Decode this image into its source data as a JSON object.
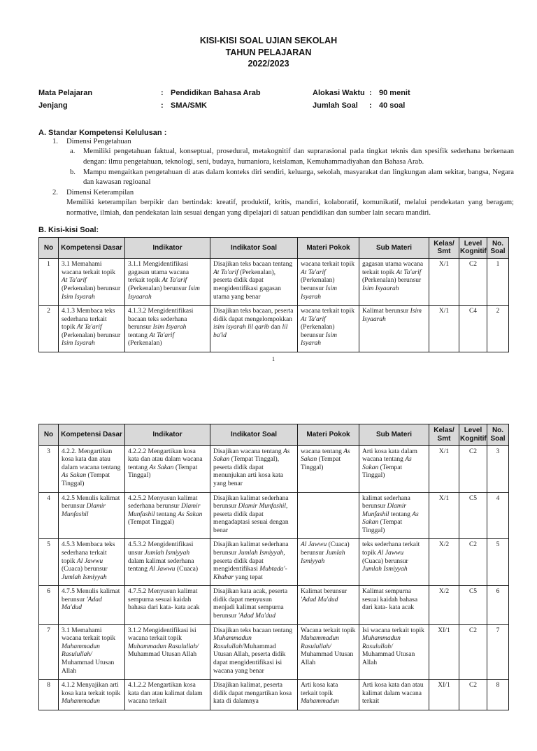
{
  "header": {
    "title_lines": [
      "KISI-KISI SOAL UJIAN SEKOLAH",
      "TAHUN PELAJARAN",
      "2022/2023"
    ]
  },
  "meta": {
    "left": [
      {
        "label": "Mata Pelajaran",
        "colon": ":",
        "value": "Pendidikan Bahasa Arab"
      },
      {
        "label": "Jenjang",
        "colon": ":",
        "value": "SMA/SMK"
      }
    ],
    "right": [
      {
        "label": "Alokasi Waktu",
        "colon": ":",
        "value": "90 menit"
      },
      {
        "label": "Jumlah Soal",
        "colon": ":",
        "value": "40 soal"
      }
    ]
  },
  "section_a": {
    "heading": "A. Standar Kompetensi Kelulusan  :",
    "items": [
      {
        "marker": "1.",
        "level": 1,
        "text": "Dimensi Pengetahuan"
      },
      {
        "marker": "a.",
        "level": 2,
        "text": "Memiliki pengetahuan faktual, konseptual, prosedural, metakognitif dan suprarasional pada tingkat teknis dan spesifik sederhana berkenaan dengan: ilmu pengetahuan, teknologi, seni, budaya, humaniora, keislaman, Kemuhammadiyahan dan Bahasa Arab."
      },
      {
        "marker": "b.",
        "level": 2,
        "text": "Mampu mengaitkan pengetahuan di atas dalam konteks diri sendiri, keluarga, sekolah, masyarakat dan lingkungan alam sekitar, bangsa, Negara dan kawasan regioanal"
      },
      {
        "marker": "2.",
        "level": 1,
        "text": "Dimensi Keterampilan"
      },
      {
        "marker": "",
        "level": 3,
        "text": "Memiliki keterampilan berpikir dan bertindak: kreatif, produktif, kritis, mandiri, kolaboratif, komunikatif, melalui pendekatan yang beragam; normative, ilmiah, dan pendekatan lain sesuai dengan yang dipelajari di satuan pendidikan dan sumber lain secara mandiri."
      }
    ]
  },
  "section_b_heading": "B. Kisi-kisi Soal:",
  "table_headers": [
    "No",
    "Kompetensi Dasar",
    "Indikator",
    "Indikator Soal",
    "Materi Pokok",
    "Sub Materi",
    "Kelas/\nSmt",
    "Level\nKognitif",
    "No.\nSoal"
  ],
  "tables": {
    "page1": [
      [
        "1",
        "3.1 Memahami wacana terkait topik *At Ta'arif* (Perkenalan) berunsur *Isim Isyarah*",
        "3.1.1 Mengidentifikasi gagasan utama wacana terkait topik *At Ta'arif* (Perkenalan) berunsur *Isim Isyaarah*",
        "Disajikan teks bacaan tentang *At Ta'arif* (Perkenalan), peserta didik dapat mengidentifikasi gagasan utama yang benar",
        "wacana terkait topik *At Ta'arif* (Perkenalan) berunsur *Isim Isyarah*",
        "gagasan utama wacana terkait topik *At Ta'arif* (Perkenalan) berunsur *Isim Isyaarah*",
        "X/1",
        "C2",
        "1"
      ],
      [
        "2",
        "4.1.3 Membaca teks sederhana terkait topik *At Ta'arif* (Perkenalan) berunsur *Isim Isyarah*",
        "4.1.3.2 Mengidentifikasi bacaan teks sederhana berunsur *Isim Isyarah* tentang *At Ta'arif* (Perkenalan)",
        "Disajikan teks bacaan, peserta didik dapat mengelompokkan *isim isyarah lil qarib* dan *lil ba'id*",
        "wacana terkait topik *At Ta'arif* (Perkenalan) berunsur *Isim Isyarah*",
        "Kalimat berunsur *Isim Isyaarah*",
        "X/1",
        "C4",
        "2"
      ]
    ],
    "page2": [
      [
        "3",
        "4.2.2. Mengartikan kosa kata dan atau dalam wacana tentang *As Sakan* (Tempat Tinggal)",
        "4.2.2.2 Mengartikan kosa kata dan atau dalam wacana tentang *As Sakan* (Tempat Tinggal)",
        "Disajikan wacana tentang *As Sakan* (Tempat Tinggal), peserta didik dapat menunjukan arti kosa kata yang benar",
        "wacana tentang *As Sakan* (Tempat Tinggal)",
        "Arti kosa kata dalam wacana tentang *As Sakan* (Tempat Tinggal)",
        "X/1",
        "C2",
        "3"
      ],
      [
        "4",
        "4.2.5 Menulis kalimat berunsur *Dlamir Munfashil*",
        "4.2.5.2 Menyusun kalimat sederhana berunsur *Dlamir Munfashil* tentang *As Sakan* (Tempat Tinggal)",
        "Disajikan kalimat sederhana berunsur *Dlamir Munfashil*, peserta didik dapat mengadaptasi sesuai dengan benar",
        "",
        "kalimat sederhana berunsur *Dlamir Munfashil* tentang *As Sakan* (Tempat Tinggal)",
        "X/1",
        "C5",
        "4"
      ],
      [
        "5",
        "4.5.3 Membaca teks sederhana terkait topik *Al Jawwu* (Cuaca) berunsur *Jumlah Ismiyyah*",
        "4.5.3.2 Mengidentifikasi unsur *Jumlah Ismiyyah* dalam kalimat sederhana tentang *Al Jawwu* (Cuaca)",
        "Disajikan kalimat sederhana berunsur *Jumlah Ismiyyah*, peserta didik dapat mengidentifikasi *Mubtada'- Khabar* yang tepat",
        "*Al Jawwu* (Cuaca) berunsur *Jumlah Ismiyyah*",
        "teks sederhana terkait topik *Al Jawwu* (Cuaca) berunsur *Jumlah Ismiyyah*",
        "X/2",
        "C2",
        "5"
      ],
      [
        "6",
        "4.7.5 Menulis kalimat berunsur *'Adad Ma'dud*",
        "4.7.5.2 Menyusun kalimat sempurna sesuai kaidah bahasa dari kata- kata acak",
        "Disajikan kata acak, peserta didik dapat menyusun menjadi kalimat sempurna berunsur *'Adad Ma'dud*",
        "Kalimat berunsur *'Adad Ma'dud*",
        "Kalimat sempurna sesuai kaidah bahasa dari kata- kata acak",
        "X/2",
        "C5",
        "6"
      ],
      [
        "7",
        "3.1 Memahami wacana terkait topik *Muhammadun Rasulullah/* Muhammad Utusan Allah",
        "3.1.2 Mengidentifikasi isi wacana terkait topik *Muhammadun Rasulullah/* Muhammad Utusan Allah",
        "Disajikan teks bacaan tentang *Muhammadun Rasulullah*/Muhammad Utusan Allah, peserta didik dapat mengidentifikasi isi wacana yang benar",
        "Wacana terkait topik *Muhammadun Rasulullah/* Muhammad Utusan Allah",
        "Isi wacana terkait topik *Muhammadun Rasulullah/* Muhammad Utusan Allah",
        "XI/1",
        "C2",
        "7"
      ],
      [
        "8",
        "4.1.2 Menyajikan arti kosa kata terkait topik *Muhammadun*",
        "4.1.2.2 Mengartikan kosa kata dan atau kalimat dalam wacana terkait",
        "Disajikan kalimat, peserta didik dapat mengartikan kosa kata di dalamnya",
        "Arti kosa kata terkait topik *Muhammadun*",
        "Arti kosa kata dan atau kalimat dalam wacana terkait",
        "XI/1",
        "C2",
        "8"
      ]
    ]
  },
  "page1_footer": "1"
}
